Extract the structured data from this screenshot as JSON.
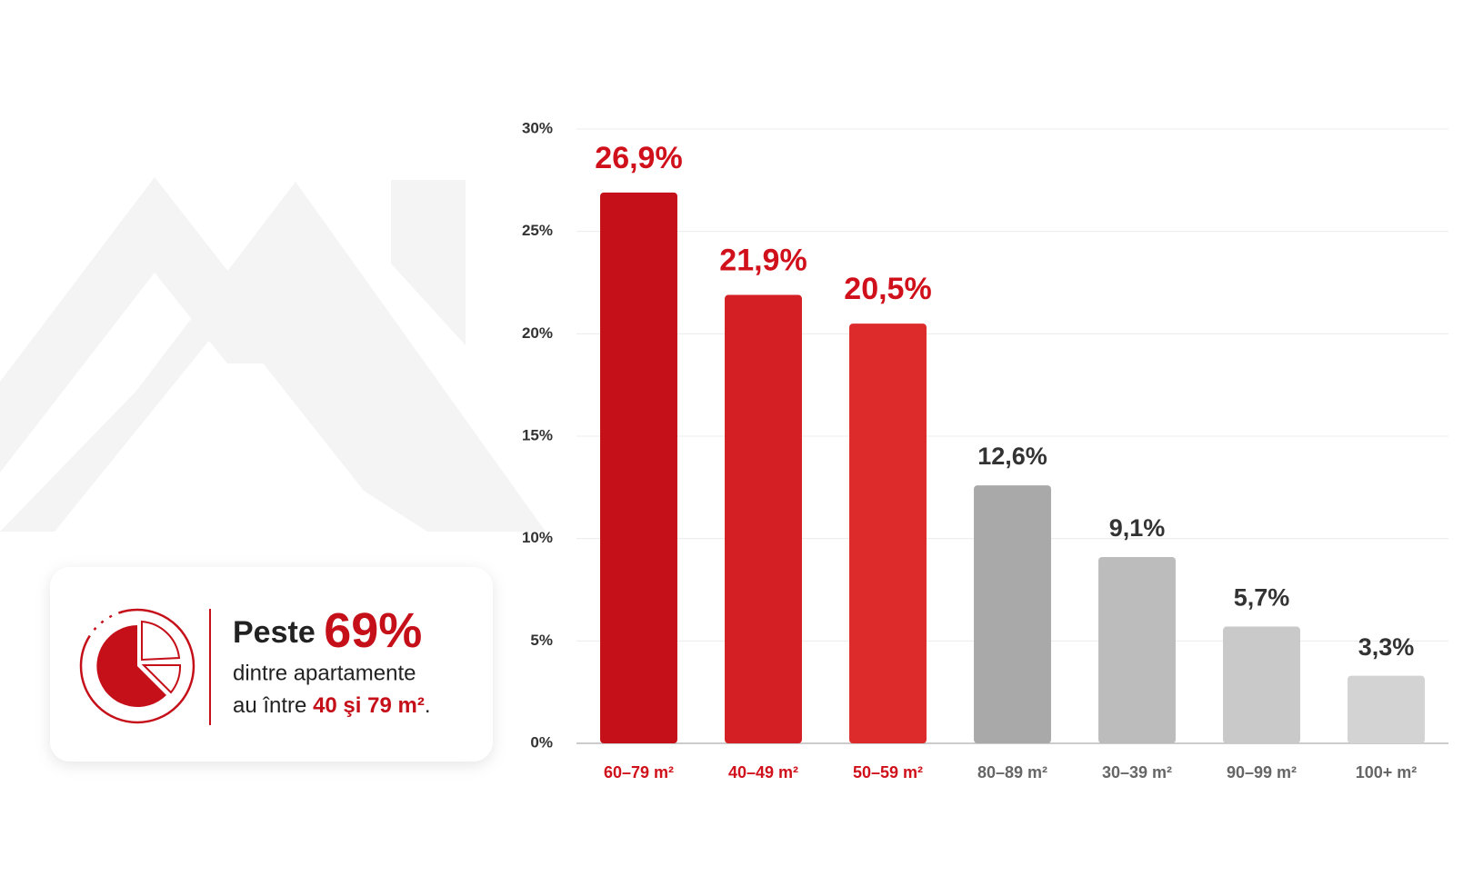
{
  "chart_data": {
    "type": "bar",
    "categories": [
      "60–79 m²",
      "40–49 m²",
      "50–59 m²",
      "80–89 m²",
      "30–39 m²",
      "90–99 m²",
      "100+ m²"
    ],
    "values": [
      26.9,
      21.9,
      20.5,
      12.6,
      9.1,
      5.7,
      3.3
    ],
    "value_labels": [
      "26,9%",
      "21,9%",
      "20,5%",
      "12,6%",
      "9,1%",
      "5,7%",
      "3,3%"
    ],
    "colors": [
      "#c5101a",
      "#d42024",
      "#dd2a2a",
      "#a9a9a9",
      "#bcbcbc",
      "#c9c9c9",
      "#d3d3d3"
    ],
    "highlighted": [
      true,
      true,
      true,
      false,
      false,
      false,
      false
    ],
    "highlight_color": "#d0101a",
    "text_color": "#333333",
    "category_color": "#666666",
    "ylim": [
      0,
      30
    ],
    "yticks": [
      {
        "value": 0,
        "label": "0%"
      },
      {
        "value": 5,
        "label": "5%"
      },
      {
        "value": 10,
        "label": "10%"
      },
      {
        "value": 15,
        "label": "15%"
      },
      {
        "value": 20,
        "label": "20%"
      },
      {
        "value": 25,
        "label": "25%"
      },
      {
        "value": 30,
        "label": "30%"
      }
    ],
    "grid": true
  },
  "callout": {
    "prefix": "Peste",
    "highlight": "69%",
    "line2": "dintre apartamente",
    "line3_prefix": "au între",
    "line3_highlight": "40 şi 79 m²",
    "line3_suffix": "."
  }
}
